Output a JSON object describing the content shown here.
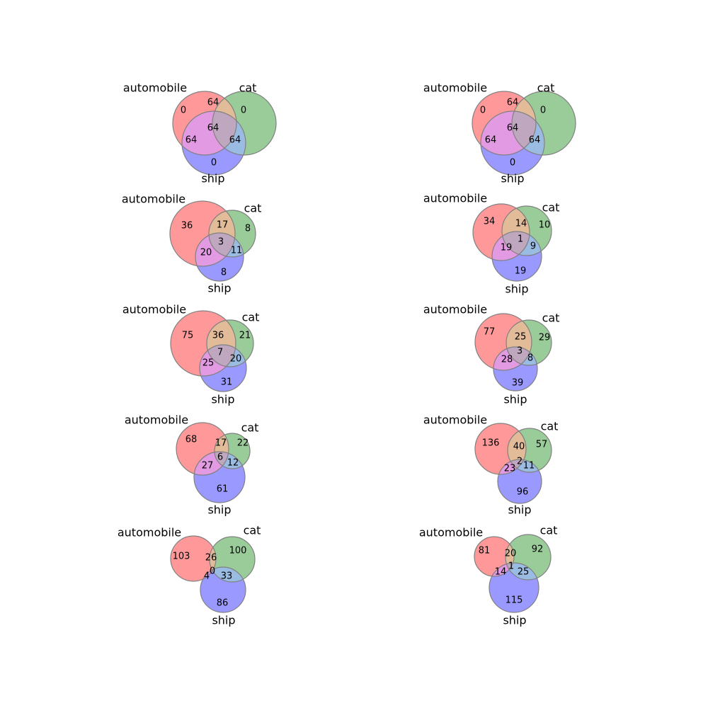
{
  "colors": {
    "automobile": "#ff9999",
    "cat": "#99cc99",
    "ship": "#9999ff",
    "automobile_cat": "#e2bc99",
    "automobile_ship": "#e29ae2",
    "cat_ship": "#9abce2",
    "all_three": "#bfa8bf",
    "circle_stroke": "#808080"
  },
  "set_names": [
    "automobile",
    "cat",
    "ship"
  ],
  "diagrams": [
    {
      "regions": {
        "automobile_only": "0",
        "cat_only": "0",
        "automobile_cat": "64",
        "ship_only": "0",
        "automobile_ship": "64",
        "cat_ship": "64",
        "all_three": "64"
      }
    },
    {
      "regions": {
        "automobile_only": "0",
        "cat_only": "0",
        "automobile_cat": "64",
        "ship_only": "0",
        "automobile_ship": "64",
        "cat_ship": "64",
        "all_three": "64"
      }
    },
    {
      "regions": {
        "automobile_only": "36",
        "cat_only": "8",
        "automobile_cat": "17",
        "ship_only": "8",
        "automobile_ship": "20",
        "cat_ship": "11",
        "all_three": "3"
      }
    },
    {
      "regions": {
        "automobile_only": "34",
        "cat_only": "10",
        "automobile_cat": "14",
        "ship_only": "19",
        "automobile_ship": "19",
        "cat_ship": "9",
        "all_three": "1"
      }
    },
    {
      "regions": {
        "automobile_only": "75",
        "cat_only": "21",
        "automobile_cat": "36",
        "ship_only": "31",
        "automobile_ship": "25",
        "cat_ship": "20",
        "all_three": "7"
      }
    },
    {
      "regions": {
        "automobile_only": "77",
        "cat_only": "29",
        "automobile_cat": "25",
        "ship_only": "39",
        "automobile_ship": "28",
        "cat_ship": "8",
        "all_three": "3"
      }
    },
    {
      "regions": {
        "automobile_only": "68",
        "cat_only": "22",
        "automobile_cat": "17",
        "ship_only": "61",
        "automobile_ship": "27",
        "cat_ship": "12",
        "all_three": "6"
      }
    },
    {
      "regions": {
        "automobile_only": "136",
        "cat_only": "57",
        "automobile_cat": "40",
        "ship_only": "96",
        "automobile_ship": "23",
        "cat_ship": "11",
        "all_three": "2"
      }
    },
    {
      "regions": {
        "automobile_only": "103",
        "cat_only": "100",
        "automobile_cat": "26",
        "ship_only": "86",
        "automobile_ship": "4",
        "cat_ship": "33",
        "all_three": "0"
      }
    },
    {
      "regions": {
        "automobile_only": "81",
        "cat_only": "92",
        "automobile_cat": "20",
        "ship_only": "115",
        "automobile_ship": "14",
        "cat_ship": "25",
        "all_three": "1"
      }
    }
  ]
}
